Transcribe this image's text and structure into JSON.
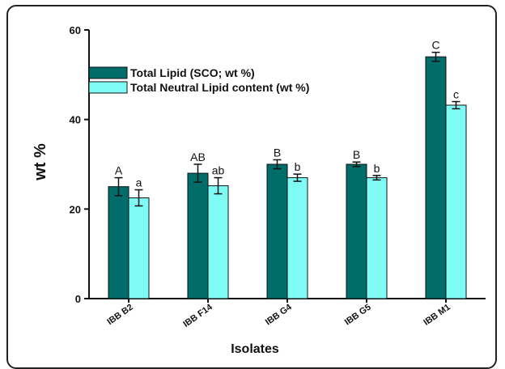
{
  "chart_data": {
    "type": "bar",
    "categories": [
      "IBB B2",
      "IBB F14",
      "IBB G4",
      "IBB G5",
      "IBB M1"
    ],
    "series": [
      {
        "name": "Total Lipid (SCO; wt %)",
        "color": "#006d6a",
        "values": [
          25.0,
          28.0,
          30.0,
          30.0,
          54.0
        ],
        "errors": [
          2.0,
          2.0,
          1.0,
          0.5,
          1.0
        ],
        "letters": [
          "A",
          "AB",
          "B",
          "B",
          "C"
        ]
      },
      {
        "name": "Total Neutral Lipid content (wt %)",
        "color": "#7ffbf6",
        "values": [
          22.5,
          25.2,
          27.0,
          27.0,
          43.2
        ],
        "errors": [
          1.8,
          1.8,
          0.8,
          0.5,
          0.8
        ],
        "letters": [
          "a",
          "ab",
          "b",
          "b",
          "c"
        ]
      }
    ],
    "title": "",
    "xlabel": "Isolates",
    "ylabel": "wt %",
    "ylim": [
      0,
      60
    ],
    "yticks": [
      0,
      20,
      40,
      60
    ],
    "grid": false,
    "legend": "top-left"
  }
}
